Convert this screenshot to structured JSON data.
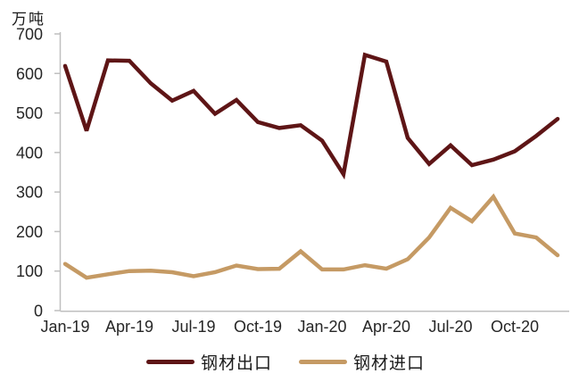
{
  "page": {
    "background": "#ffffff"
  },
  "chart_data": {
    "type": "line",
    "unit_label": "万吨",
    "x": [
      "Jan-19",
      "Feb-19",
      "Mar-19",
      "Apr-19",
      "May-19",
      "Jun-19",
      "Jul-19",
      "Aug-19",
      "Sep-19",
      "Oct-19",
      "Nov-19",
      "Dec-19",
      "Jan-20",
      "Feb-20",
      "Mar-20",
      "Apr-20",
      "May-20",
      "Jun-20",
      "Jul-20",
      "Aug-20",
      "Sep-20",
      "Oct-20",
      "Nov-20",
      "Dec-20"
    ],
    "x_tick_labels": [
      "Jan-19",
      "Apr-19",
      "Jul-19",
      "Oct-19",
      "Jan-20",
      "Apr-20",
      "Jul-20",
      "Oct-20"
    ],
    "y_ticks": [
      0,
      100,
      200,
      300,
      400,
      500,
      600,
      700
    ],
    "ylim": [
      0,
      700
    ],
    "grid": false,
    "legend_position": "bottom",
    "axis_color": "#bfbfbf",
    "series": [
      {
        "name": "钢材出口",
        "color": "#5e1516",
        "values": [
          619,
          455,
          633,
          632,
          575,
          531,
          556,
          498,
          533,
          477,
          462,
          469,
          430,
          345,
          647,
          630,
          437,
          371,
          418,
          368,
          382,
          403,
          442,
          485
        ]
      },
      {
        "name": "钢材进口",
        "color": "#c59a64",
        "values": [
          118,
          83,
          92,
          100,
          101,
          97,
          87,
          97,
          114,
          105,
          106,
          150,
          104,
          104,
          115,
          106,
          130,
          185,
          260,
          226,
          288,
          195,
          185,
          140
        ]
      }
    ]
  }
}
